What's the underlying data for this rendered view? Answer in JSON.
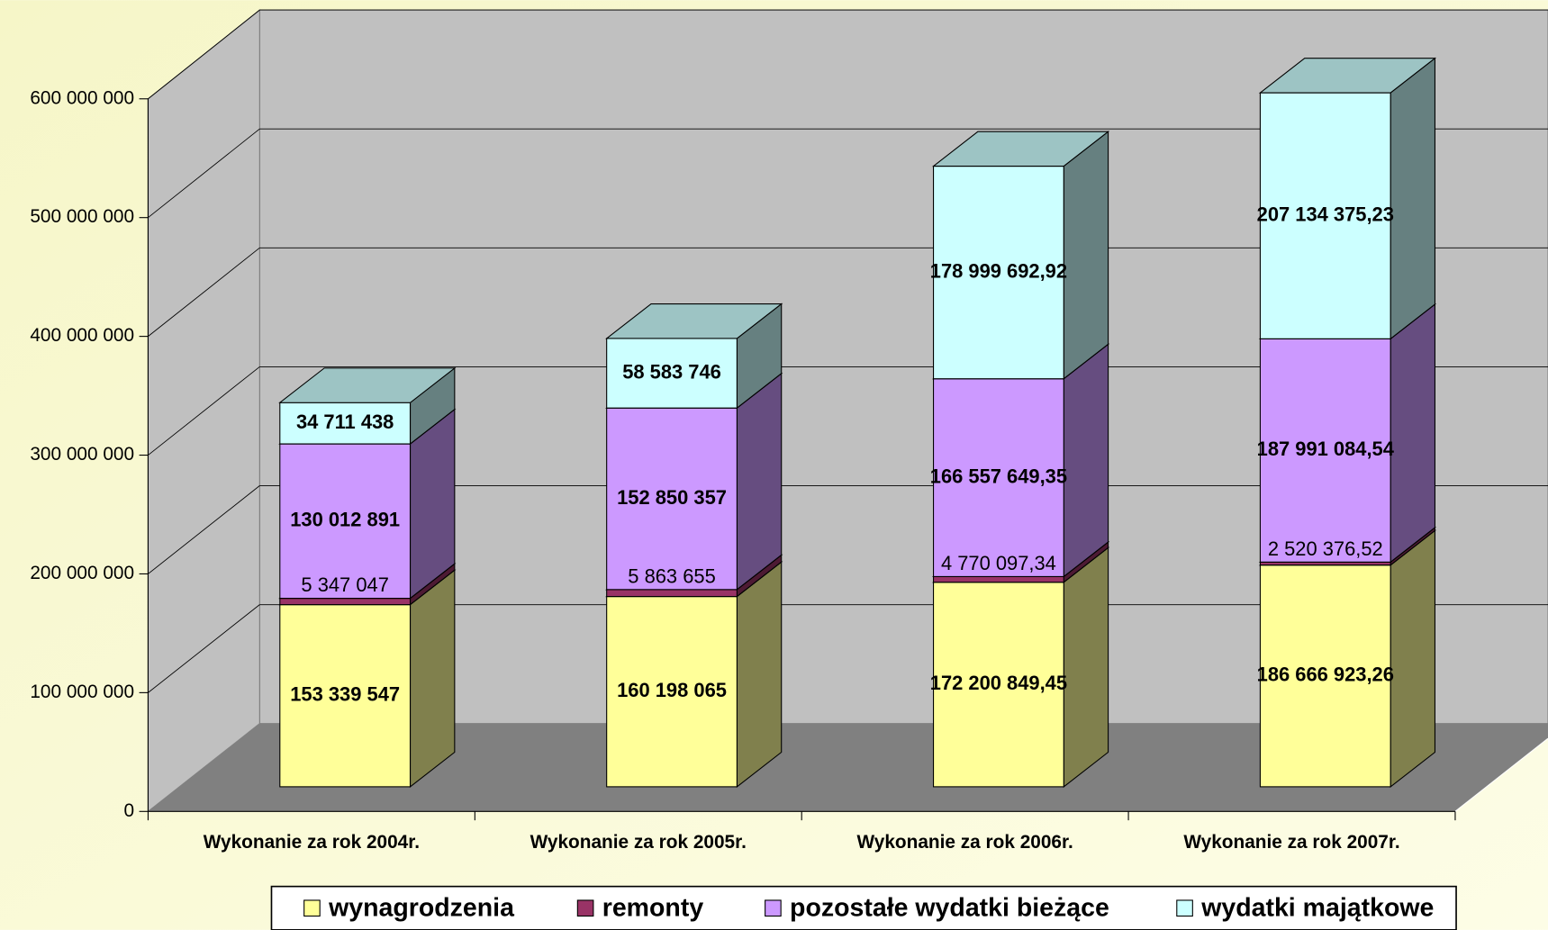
{
  "chart_data": {
    "type": "bar3d_stacked",
    "categories": [
      "Wykonanie za rok 2004r.",
      "Wykonanie za rok 2005r.",
      "Wykonanie za rok 2006r.",
      "Wykonanie za rok 2007r."
    ],
    "series": [
      {
        "name": "wynagrodzenia",
        "color": "#ffff99",
        "values": [
          153339547,
          160198065,
          172200849.45,
          186666923.26
        ],
        "value_labels": [
          "153 339 547",
          "160 198 065",
          "172 200 849,45",
          "186 666 923,26"
        ]
      },
      {
        "name": "remonty",
        "color": "#993366",
        "values": [
          5347047,
          5863655,
          4770097.34,
          2520376.52
        ],
        "value_labels": [
          "5 347 047",
          "5 863 655",
          "4 770 097,34",
          "2 520 376,52"
        ]
      },
      {
        "name": "pozostałe wydatki bieżące",
        "color": "#cc99ff",
        "values": [
          130012891,
          152850357,
          166557649.35,
          187991084.54
        ],
        "value_labels": [
          "130 012 891",
          "152 850 357",
          "166 557 649,35",
          "187 991 084,54"
        ]
      },
      {
        "name": "wydatki majątkowe",
        "color": "#ccffff",
        "values": [
          34711438,
          58583746,
          178999692.92,
          207134375.23
        ],
        "value_labels": [
          "34 711 438",
          "58 583 746",
          "178 999 692,92",
          "207 134 375,23"
        ]
      }
    ],
    "ylim": [
      0,
      600000000
    ],
    "yticks": [
      0,
      {
        "value": 100000000,
        "label": "100 000 000"
      },
      {
        "value": 200000000,
        "label": "200 000 000"
      },
      {
        "value": 300000000,
        "label": "300 000 000"
      },
      {
        "value": 400000000,
        "label": "400 000 000"
      },
      {
        "value": 500000000,
        "label": "500 000 000"
      },
      {
        "value": 600000000,
        "label": "600 000 000"
      }
    ],
    "grid": true,
    "legend": "bottom"
  }
}
